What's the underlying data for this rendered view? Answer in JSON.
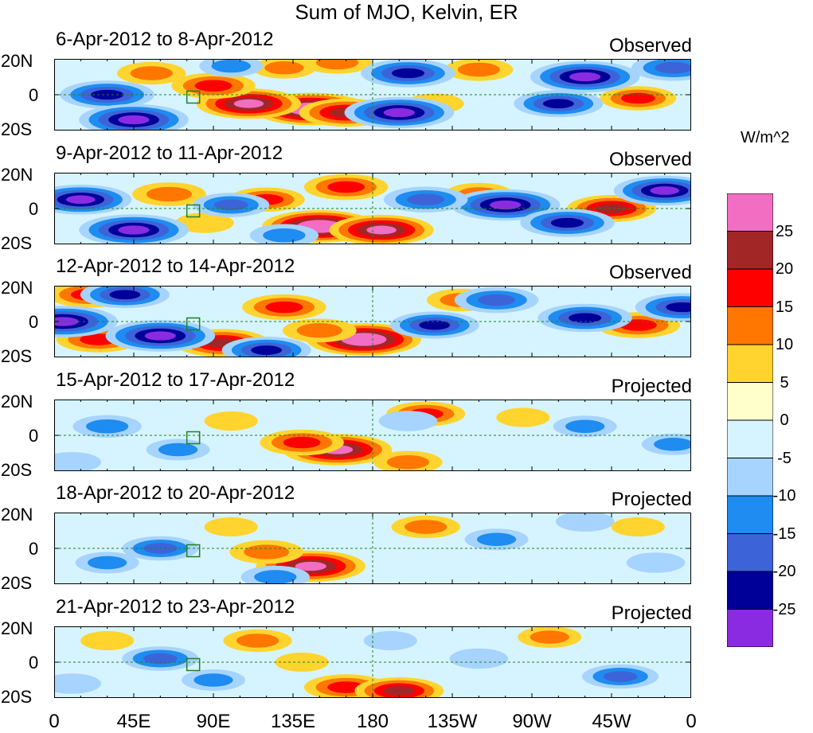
{
  "chart_data": {
    "type": "heatmap",
    "title": "Sum of MJO, Kelvin, ER",
    "units": "W/m^2",
    "lat_labels": [
      "20N",
      "0",
      "20S"
    ],
    "lon_labels": [
      "0",
      "45E",
      "90E",
      "135E",
      "180",
      "135W",
      "90W",
      "45W",
      "0"
    ],
    "lat_range": [
      -20,
      20
    ],
    "lon_range": [
      0,
      360
    ],
    "colorbar": {
      "levels": [
        25,
        20,
        15,
        10,
        5,
        0,
        -5,
        -10,
        -15,
        -20,
        -25
      ],
      "colors": [
        "#f26ec3",
        "#a32626",
        "#ff0000",
        "#ff7700",
        "#ffd42e",
        "#ffffcc",
        "#d6f4ff",
        "#a6d4ff",
        "#1e8cf0",
        "#3c64d8",
        "#000099",
        "#8a2be2"
      ]
    },
    "panels": [
      {
        "date_range": "6-Apr-2012 to 8-Apr-2012",
        "status": "Observed",
        "features": [
          {
            "lon": 145,
            "lat": -8,
            "value": 30
          },
          {
            "lon": 110,
            "lat": -5,
            "value": 26
          },
          {
            "lon": 165,
            "lat": -10,
            "value": 22
          },
          {
            "lon": 90,
            "lat": 5,
            "value": 18
          },
          {
            "lon": 55,
            "lat": 12,
            "value": 12
          },
          {
            "lon": 130,
            "lat": 15,
            "value": 10
          },
          {
            "lon": 160,
            "lat": 18,
            "value": 12
          },
          {
            "lon": 240,
            "lat": 14,
            "value": 12
          },
          {
            "lon": 215,
            "lat": -5,
            "value": 8
          },
          {
            "lon": 330,
            "lat": -2,
            "value": 15
          },
          {
            "lon": 200,
            "lat": 12,
            "value": -22
          },
          {
            "lon": 300,
            "lat": 10,
            "value": -28
          },
          {
            "lon": 195,
            "lat": -10,
            "value": -28
          },
          {
            "lon": 30,
            "lat": 0,
            "value": -22
          },
          {
            "lon": 45,
            "lat": -14,
            "value": -28
          },
          {
            "lon": 285,
            "lat": -5,
            "value": -20
          },
          {
            "lon": 100,
            "lat": 16,
            "value": -10
          },
          {
            "lon": 350,
            "lat": 15,
            "value": -18
          }
        ]
      },
      {
        "date_range": "9-Apr-2012 to 11-Apr-2012",
        "status": "Observed",
        "features": [
          {
            "lon": 150,
            "lat": -10,
            "value": 30
          },
          {
            "lon": 185,
            "lat": -12,
            "value": 26
          },
          {
            "lon": 120,
            "lat": 5,
            "value": 15
          },
          {
            "lon": 65,
            "lat": 8,
            "value": 14
          },
          {
            "lon": 165,
            "lat": 12,
            "value": 18
          },
          {
            "lon": 240,
            "lat": 8,
            "value": 12
          },
          {
            "lon": 315,
            "lat": 0,
            "value": 20
          },
          {
            "lon": 85,
            "lat": -8,
            "value": 8
          },
          {
            "lon": 45,
            "lat": -12,
            "value": -28
          },
          {
            "lon": 15,
            "lat": 5,
            "value": -25
          },
          {
            "lon": 100,
            "lat": 2,
            "value": -15
          },
          {
            "lon": 255,
            "lat": 2,
            "value": -28
          },
          {
            "lon": 210,
            "lat": 5,
            "value": -18
          },
          {
            "lon": 290,
            "lat": -8,
            "value": -22
          },
          {
            "lon": 345,
            "lat": 10,
            "value": -25
          },
          {
            "lon": 130,
            "lat": -15,
            "value": -12
          }
        ]
      },
      {
        "date_range": "12-Apr-2012 to 14-Apr-2012",
        "status": "Observed",
        "features": [
          {
            "lon": 175,
            "lat": -10,
            "value": 30
          },
          {
            "lon": 130,
            "lat": 8,
            "value": 18
          },
          {
            "lon": 20,
            "lat": 15,
            "value": 18
          },
          {
            "lon": 25,
            "lat": -10,
            "value": 18
          },
          {
            "lon": 95,
            "lat": -12,
            "value": 22
          },
          {
            "lon": 150,
            "lat": -5,
            "value": 14
          },
          {
            "lon": 230,
            "lat": 12,
            "value": 12
          },
          {
            "lon": 330,
            "lat": -2,
            "value": 18
          },
          {
            "lon": 60,
            "lat": -8,
            "value": -28
          },
          {
            "lon": 5,
            "lat": 0,
            "value": -28
          },
          {
            "lon": 40,
            "lat": 15,
            "value": -20
          },
          {
            "lon": 215,
            "lat": -2,
            "value": -20
          },
          {
            "lon": 300,
            "lat": 2,
            "value": -22
          },
          {
            "lon": 355,
            "lat": 8,
            "value": -22
          },
          {
            "lon": 250,
            "lat": 12,
            "value": -18
          },
          {
            "lon": 120,
            "lat": -16,
            "value": -20
          }
        ]
      },
      {
        "date_range": "15-Apr-2012 to 17-Apr-2012",
        "status": "Projected",
        "features": [
          {
            "lon": 160,
            "lat": -8,
            "value": 28
          },
          {
            "lon": 140,
            "lat": -4,
            "value": 18
          },
          {
            "lon": 210,
            "lat": 12,
            "value": 16
          },
          {
            "lon": 200,
            "lat": -15,
            "value": 12
          },
          {
            "lon": 100,
            "lat": 8,
            "value": 6
          },
          {
            "lon": 265,
            "lat": 10,
            "value": 6
          },
          {
            "lon": 30,
            "lat": 5,
            "value": -12
          },
          {
            "lon": 70,
            "lat": -8,
            "value": -10
          },
          {
            "lon": 200,
            "lat": 8,
            "value": -8
          },
          {
            "lon": 300,
            "lat": 5,
            "value": -10
          },
          {
            "lon": 350,
            "lat": -5,
            "value": -10
          },
          {
            "lon": 10,
            "lat": -15,
            "value": -8
          }
        ]
      },
      {
        "date_range": "18-Apr-2012 to 20-Apr-2012",
        "status": "Projected",
        "features": [
          {
            "lon": 145,
            "lat": -10,
            "value": 28
          },
          {
            "lon": 120,
            "lat": -2,
            "value": 14
          },
          {
            "lon": 210,
            "lat": 12,
            "value": 12
          },
          {
            "lon": 100,
            "lat": 12,
            "value": 6
          },
          {
            "lon": 60,
            "lat": 0,
            "value": -15
          },
          {
            "lon": 30,
            "lat": -8,
            "value": -10
          },
          {
            "lon": 125,
            "lat": -16,
            "value": -12
          },
          {
            "lon": 250,
            "lat": 5,
            "value": -10
          },
          {
            "lon": 300,
            "lat": 15,
            "value": -8
          },
          {
            "lon": 340,
            "lat": -8,
            "value": -8
          },
          {
            "lon": 330,
            "lat": 12,
            "value": 6
          }
        ]
      },
      {
        "date_range": "21-Apr-2012 to 23-Apr-2012",
        "status": "Projected",
        "features": [
          {
            "lon": 165,
            "lat": -14,
            "value": 18
          },
          {
            "lon": 115,
            "lat": 12,
            "value": 12
          },
          {
            "lon": 195,
            "lat": -16,
            "value": 20
          },
          {
            "lon": 280,
            "lat": 14,
            "value": 10
          },
          {
            "lon": 30,
            "lat": 12,
            "value": 6
          },
          {
            "lon": 140,
            "lat": 0,
            "value": 6
          },
          {
            "lon": 60,
            "lat": 2,
            "value": -15
          },
          {
            "lon": 90,
            "lat": -10,
            "value": -10
          },
          {
            "lon": 320,
            "lat": -8,
            "value": -15
          },
          {
            "lon": 240,
            "lat": 2,
            "value": -8
          },
          {
            "lon": 10,
            "lat": -12,
            "value": -8
          },
          {
            "lon": 190,
            "lat": 12,
            "value": -6
          }
        ]
      }
    ]
  }
}
